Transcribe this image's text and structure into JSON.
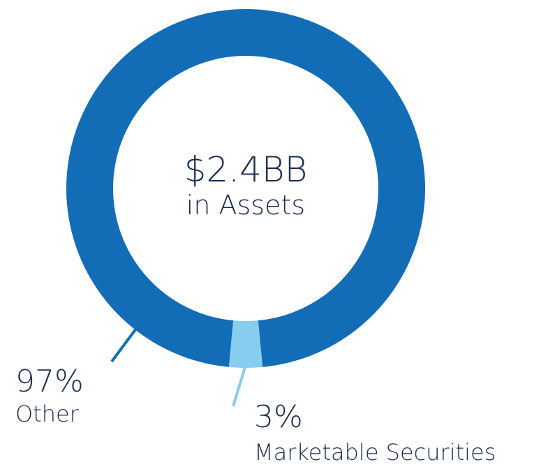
{
  "chart_data": {
    "type": "pie",
    "center": {
      "value": "$2.4BB",
      "label": "in Assets"
    },
    "slices": [
      {
        "label": "Other",
        "percent_label": "97%",
        "value": 97,
        "color": "#136cb6"
      },
      {
        "label": "Marketable Securities",
        "percent_label": "3%",
        "value": 3,
        "color": "#86cdef"
      }
    ],
    "legend_placement": "bottom",
    "grid": false
  }
}
